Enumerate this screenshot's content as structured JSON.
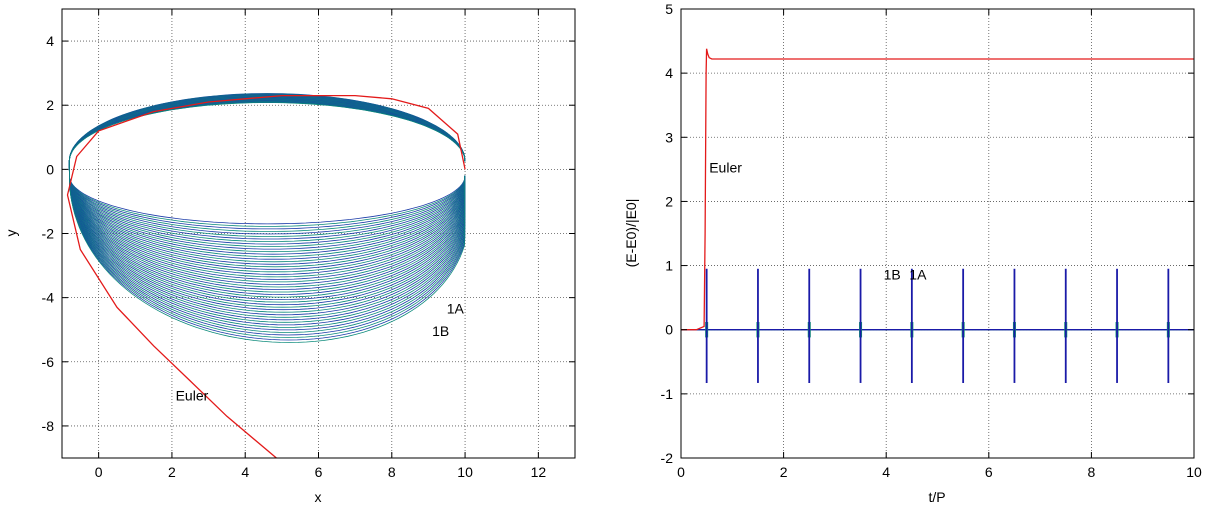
{
  "chart_data": [
    {
      "type": "line",
      "xlabel": "x",
      "ylabel": "y",
      "xlim": [
        -1,
        13
      ],
      "ylim": [
        -9,
        5
      ],
      "xticks": [
        0,
        2,
        4,
        6,
        8,
        10,
        12
      ],
      "yticks": [
        -8,
        -6,
        -4,
        -2,
        0,
        2,
        4
      ],
      "grid": true,
      "series": [
        {
          "name": "1A",
          "color": "#1a1aa8",
          "description_of_shape": "precessing ellipse band",
          "x": [
            9.99,
            9.5,
            8.5,
            7,
            5,
            3,
            1,
            0,
            -0.6,
            -0.9,
            -0.8,
            0.5,
            2.5,
            4.5,
            6.5,
            7.5,
            8.5,
            9.2,
            9.8,
            9.99
          ],
          "y": [
            0,
            1.2,
            1.9,
            2.2,
            2.3,
            2.15,
            1.8,
            1.1,
            0.3,
            -0.8,
            -1.2,
            -3,
            -4.8,
            -6.2,
            -7,
            -6.8,
            -6,
            -4.5,
            -2.5,
            0
          ]
        },
        {
          "name": "1B",
          "color": "#0a9a6a",
          "x": [
            9.99,
            9.5,
            8.5,
            7,
            5,
            3,
            1,
            0,
            -0.6,
            -0.9,
            -0.8,
            0.5,
            2.5,
            4.5,
            6.5,
            7.5,
            8.5,
            9.2,
            9.8,
            9.99
          ],
          "y": [
            0,
            1.2,
            1.9,
            2.2,
            2.3,
            2.15,
            1.8,
            1.1,
            0.3,
            -0.8,
            -1.2,
            -3,
            -4.8,
            -6.2,
            -7,
            -6.8,
            -6,
            -4.5,
            -2.5,
            0
          ]
        },
        {
          "name": "Euler",
          "color": "#e31a1a",
          "x": [
            10,
            9.8,
            9,
            8,
            7,
            5,
            3,
            1.5,
            0,
            -0.6,
            -0.85,
            -0.5,
            0.5,
            1.5,
            2.5,
            3.5,
            4.85
          ],
          "y": [
            0,
            1.1,
            1.9,
            2.2,
            2.3,
            2.3,
            2.1,
            1.8,
            1.2,
            0.4,
            -0.8,
            -2.5,
            -4.3,
            -5.5,
            -6.6,
            -7.7,
            -9
          ]
        }
      ],
      "annotations": [
        {
          "text": "1A",
          "x": 9.5,
          "y": -4.5
        },
        {
          "text": "1B",
          "x": 9.1,
          "y": -5.2
        },
        {
          "text": "Euler",
          "x": 2.1,
          "y": -7.2
        }
      ]
    },
    {
      "type": "line",
      "xlabel": "t/P",
      "ylabel": "(E-E0)/|E0|",
      "xlim": [
        0,
        10
      ],
      "ylim": [
        -2,
        5
      ],
      "xticks": [
        0,
        2,
        4,
        6,
        8,
        10
      ],
      "yticks": [
        -2,
        -1,
        0,
        1,
        2,
        3,
        4,
        5
      ],
      "grid": true,
      "series": [
        {
          "name": "Euler",
          "color": "#e31a1a",
          "x": [
            0,
            0.3,
            0.45,
            0.47,
            0.49,
            0.5,
            0.52,
            0.55,
            0.6,
            1.0,
            10
          ],
          "y": [
            0,
            0,
            0.05,
            1.5,
            4.0,
            4.38,
            4.3,
            4.24,
            4.22,
            4.22,
            4.22
          ]
        },
        {
          "name": "1A",
          "color": "#1a1aa8",
          "spike_times": [
            0.5,
            1.5,
            2.5,
            3.5,
            4.5,
            5.5,
            6.5,
            7.5,
            8.5,
            9.5
          ],
          "spike_max": 0.95,
          "spike_min": -0.83
        },
        {
          "name": "1B",
          "color": "#0a9a6a",
          "spike_times": [
            0.5,
            1.5,
            2.5,
            3.5,
            4.5,
            5.5,
            6.5,
            7.5,
            8.5,
            9.5
          ],
          "spike_max": 0.12,
          "spike_min": -0.12
        }
      ],
      "annotations": [
        {
          "text": "Euler",
          "x": 0.55,
          "y": 2.45
        },
        {
          "text": "1B",
          "x": 3.95,
          "y": 0.78
        },
        {
          "text": "1A",
          "x": 4.45,
          "y": 0.78
        }
      ]
    }
  ]
}
